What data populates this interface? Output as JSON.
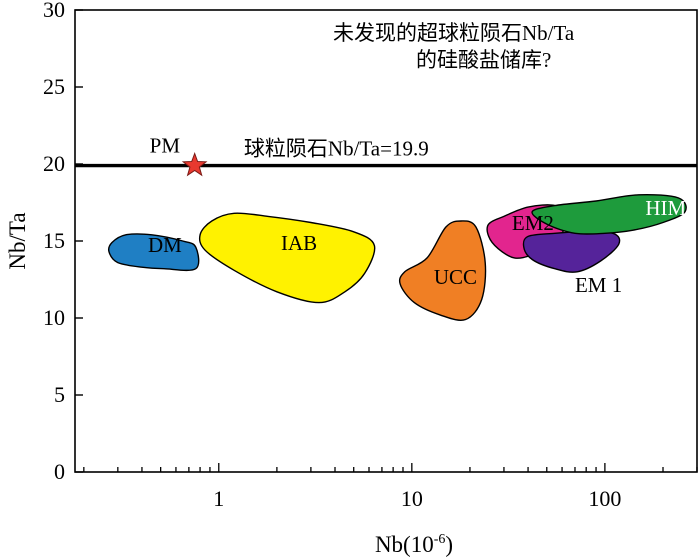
{
  "chart_data": {
    "type": "scatter",
    "title": "",
    "annotation": {
      "line1": "未发现的超球粒陨石Nb/Ta",
      "line2": "的硅酸盐储库?"
    },
    "xlabel": {
      "base": "Nb(10",
      "exponent": "-6",
      "close": ")"
    },
    "ylabel": "Nb/Ta",
    "x_scale": "log",
    "xlim": [
      0.18,
      300
    ],
    "ylim": [
      0,
      30
    ],
    "x_ticks": [
      {
        "value": 1,
        "label": "1"
      },
      {
        "value": 10,
        "label": "10"
      },
      {
        "value": 100,
        "label": "100"
      }
    ],
    "y_ticks": [
      {
        "value": 0,
        "label": "0"
      },
      {
        "value": 5,
        "label": "5"
      },
      {
        "value": 10,
        "label": "10"
      },
      {
        "value": 15,
        "label": "15"
      },
      {
        "value": 20,
        "label": "20"
      },
      {
        "value": 25,
        "label": "25"
      },
      {
        "value": 30,
        "label": "30"
      }
    ],
    "reference_line": {
      "y": 19.9,
      "label": "球粒陨石Nb/Ta=19.9",
      "color": "#000000"
    },
    "point": {
      "label": "PM",
      "x": 0.75,
      "y": 19.9,
      "marker": "star",
      "color": "#e8392f"
    },
    "fields": [
      {
        "name": "DM",
        "color": "#1f7fc4",
        "label_at": [
          0.43,
          14.3
        ],
        "label_color": "#000000",
        "outline": [
          [
            0.28,
            14.9
          ],
          [
            0.33,
            15.4
          ],
          [
            0.45,
            15.4
          ],
          [
            0.65,
            15.0
          ],
          [
            0.76,
            14.6
          ],
          [
            0.76,
            13.2
          ],
          [
            0.52,
            13.2
          ],
          [
            0.4,
            13.3
          ],
          [
            0.3,
            13.6
          ],
          [
            0.27,
            14.3
          ]
        ]
      },
      {
        "name": "IAB",
        "color": "#fff200",
        "label_at": [
          2.1,
          14.4
        ],
        "label_color": "#000000",
        "outline": [
          [
            0.8,
            15.4
          ],
          [
            0.92,
            16.3
          ],
          [
            1.2,
            16.8
          ],
          [
            1.8,
            16.6
          ],
          [
            3,
            16.2
          ],
          [
            5,
            15.6
          ],
          [
            6.4,
            14.7
          ],
          [
            5.7,
            12.9
          ],
          [
            4.5,
            11.7
          ],
          [
            3.3,
            11.0
          ],
          [
            2,
            11.7
          ],
          [
            1.2,
            13.1
          ],
          [
            0.85,
            14.4
          ]
        ]
      },
      {
        "name": "UCC",
        "color": "#f07f24",
        "label_at": [
          13,
          12.2
        ],
        "label_color": "#000000",
        "outline": [
          [
            12,
            13.9
          ],
          [
            15,
            15.9
          ],
          [
            18,
            16.3
          ],
          [
            21.5,
            15.9
          ],
          [
            24,
            13.6
          ],
          [
            23,
            11.2
          ],
          [
            19,
            9.9
          ],
          [
            14,
            10.2
          ],
          [
            10.3,
            11.0
          ],
          [
            8.7,
            12.2
          ],
          [
            9.2,
            13.0
          ]
        ]
      },
      {
        "name": "EM2",
        "color": "#e2258e",
        "label_at": [
          33,
          15.7
        ],
        "label_color": "#000000",
        "outline": [
          [
            25,
            16.1
          ],
          [
            30,
            16.6
          ],
          [
            40,
            17.2
          ],
          [
            55,
            17.3
          ],
          [
            62,
            16.6
          ],
          [
            60,
            15.5
          ],
          [
            50,
            14.6
          ],
          [
            42,
            14.1
          ],
          [
            34,
            13.9
          ],
          [
            28,
            14.5
          ],
          [
            25,
            15.3
          ]
        ]
      },
      {
        "name": "EM 1",
        "color": "#55239a",
        "label_at": [
          70,
          11.7
        ],
        "label_color": "#000000",
        "outline": [
          [
            40,
            15.3
          ],
          [
            55,
            15.5
          ],
          [
            75,
            15.6
          ],
          [
            110,
            15.5
          ],
          [
            118,
            14.8
          ],
          [
            95,
            13.7
          ],
          [
            72,
            13.0
          ],
          [
            55,
            13.2
          ],
          [
            42,
            13.8
          ],
          [
            38,
            14.6
          ]
        ]
      },
      {
        "name": "HIMU",
        "color": "#1e9b3c",
        "label_at": [
          162,
          16.7
        ],
        "label_color": "#ffffff",
        "outline": [
          [
            42,
            16.9
          ],
          [
            55,
            17.3
          ],
          [
            90,
            17.6
          ],
          [
            150,
            18.0
          ],
          [
            240,
            17.8
          ],
          [
            260,
            16.9
          ],
          [
            200,
            16.2
          ],
          [
            140,
            15.7
          ],
          [
            100,
            15.5
          ],
          [
            70,
            15.5
          ],
          [
            50,
            16.1
          ]
        ]
      }
    ],
    "grid": false,
    "legend": "none"
  }
}
